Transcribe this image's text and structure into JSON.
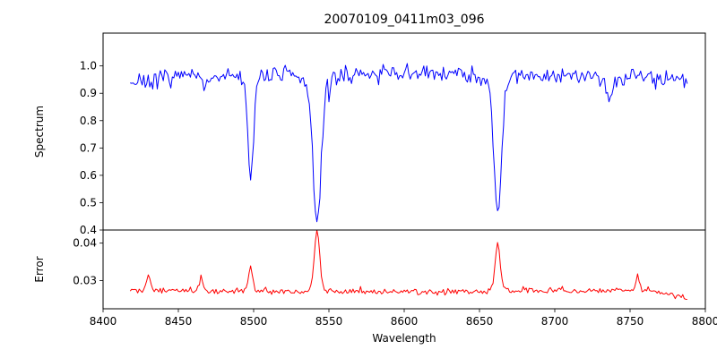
{
  "figure": {
    "background": "#ffffff",
    "text_color": "#000000",
    "axis_color": "#000000"
  },
  "chart_data": {
    "type": "line",
    "title": "20070109_0411m03_096",
    "xlabel": "Wavelength",
    "xlim": [
      8400,
      8800
    ],
    "x_ticks": [
      8400,
      8450,
      8500,
      8550,
      8600,
      8650,
      8700,
      8750,
      8800
    ],
    "x_range": [
      8418,
      8788
    ],
    "sample_step": 1,
    "legend": "none",
    "grid": false,
    "panels": [
      {
        "name": "spectrum",
        "ylabel": "Spectrum",
        "line_color": "#0000ff",
        "ylim": [
          0.4,
          1.12
        ],
        "y_ticks": [
          {
            "v": 0.4,
            "label": "0.4"
          },
          {
            "v": 0.5,
            "label": "0.5"
          },
          {
            "v": 0.6,
            "label": "0.6"
          },
          {
            "v": 0.7,
            "label": "0.7"
          },
          {
            "v": 0.8,
            "label": "0.8"
          },
          {
            "v": 0.9,
            "label": "0.9"
          },
          {
            "v": 1.0,
            "label": "1.0"
          }
        ],
        "continuum_trend": [
          [
            8418,
            0.945
          ],
          [
            8435,
            0.955
          ],
          [
            8460,
            0.96
          ],
          [
            8500,
            0.965
          ],
          [
            8540,
            0.968
          ],
          [
            8580,
            0.97
          ],
          [
            8620,
            0.972
          ],
          [
            8660,
            0.97
          ],
          [
            8700,
            0.966
          ],
          [
            8740,
            0.958
          ],
          [
            8770,
            0.962
          ],
          [
            8788,
            0.952
          ]
        ],
        "noise_sigma": 0.016,
        "noise_seed": 7,
        "spike_prob": 0.04,
        "spike_max": 0.05,
        "spike_dir": -1,
        "features": [
          {
            "center": 8498.0,
            "amp": -0.4,
            "sigma": 1.8,
            "label": "absorption-line-8498"
          },
          {
            "center": 8542.1,
            "amp": -0.5,
            "sigma": 2.6,
            "label": "absorption-line-8542"
          },
          {
            "center": 8542.1,
            "amp": -0.05,
            "sigma": 7.0,
            "label": "line-wings-8542"
          },
          {
            "center": 8662.1,
            "amp": -0.46,
            "sigma": 2.4,
            "label": "absorption-line-8662"
          },
          {
            "center": 8662.1,
            "amp": -0.045,
            "sigma": 6.0,
            "label": "line-wings-8662"
          },
          {
            "center": 8432.0,
            "amp": -0.05,
            "sigma": 1.2,
            "label": "minor-dip"
          },
          {
            "center": 8467.0,
            "amp": -0.045,
            "sigma": 1.2,
            "label": "minor-dip"
          },
          {
            "center": 8736.0,
            "amp": -0.08,
            "sigma": 1.6,
            "label": "minor-dip"
          }
        ]
      },
      {
        "name": "error",
        "ylabel": "Error",
        "line_color": "#ff0000",
        "ylim": [
          0.0225,
          0.0435
        ],
        "y_ticks": [
          {
            "v": 0.03,
            "label": "0.03"
          },
          {
            "v": 0.04,
            "label": "0.04"
          }
        ],
        "continuum_trend": [
          [
            8418,
            0.0278
          ],
          [
            8430,
            0.0274
          ],
          [
            8500,
            0.0272
          ],
          [
            8600,
            0.027
          ],
          [
            8680,
            0.0272
          ],
          [
            8730,
            0.0274
          ],
          [
            8762,
            0.0276
          ],
          [
            8775,
            0.0262
          ],
          [
            8788,
            0.0256
          ]
        ],
        "noise_sigma": 0.00035,
        "noise_seed": 13,
        "spike_prob": 0.05,
        "spike_max": 0.0012,
        "spike_dir": 1,
        "features": [
          {
            "center": 8430.0,
            "amp": 0.0042,
            "sigma": 1.2,
            "label": "error-peak-8430"
          },
          {
            "center": 8465.0,
            "amp": 0.0032,
            "sigma": 1.2,
            "label": "error-peak-8465"
          },
          {
            "center": 8498.0,
            "amp": 0.0062,
            "sigma": 1.4,
            "label": "error-peak-8498"
          },
          {
            "center": 8542.1,
            "amp": 0.016,
            "sigma": 1.8,
            "label": "error-peak-8542"
          },
          {
            "center": 8662.1,
            "amp": 0.0132,
            "sigma": 1.7,
            "label": "error-peak-8662"
          },
          {
            "center": 8755.0,
            "amp": 0.003,
            "sigma": 1.2,
            "label": "error-peak-8755"
          }
        ]
      }
    ]
  }
}
